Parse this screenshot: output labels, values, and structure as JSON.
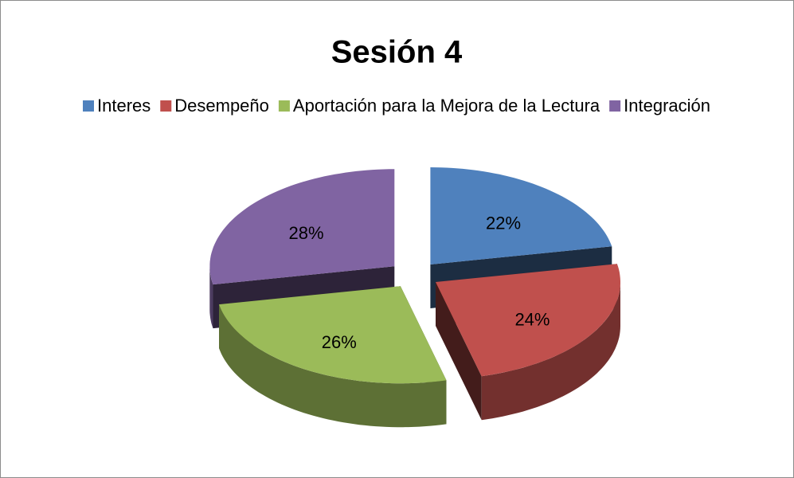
{
  "chart_data": {
    "type": "pie",
    "title": "Sesión 4",
    "categories": [
      "Interes",
      "Desempeño",
      "Aportación para la Mejora de la Lectura",
      "Integración"
    ],
    "values": [
      22,
      24,
      26,
      28
    ],
    "value_labels": [
      "22%",
      "24%",
      "26%",
      "28%"
    ],
    "colors": [
      "#4f81bd",
      "#c0504d",
      "#9bbb59",
      "#8064a2"
    ],
    "legend": "top"
  }
}
